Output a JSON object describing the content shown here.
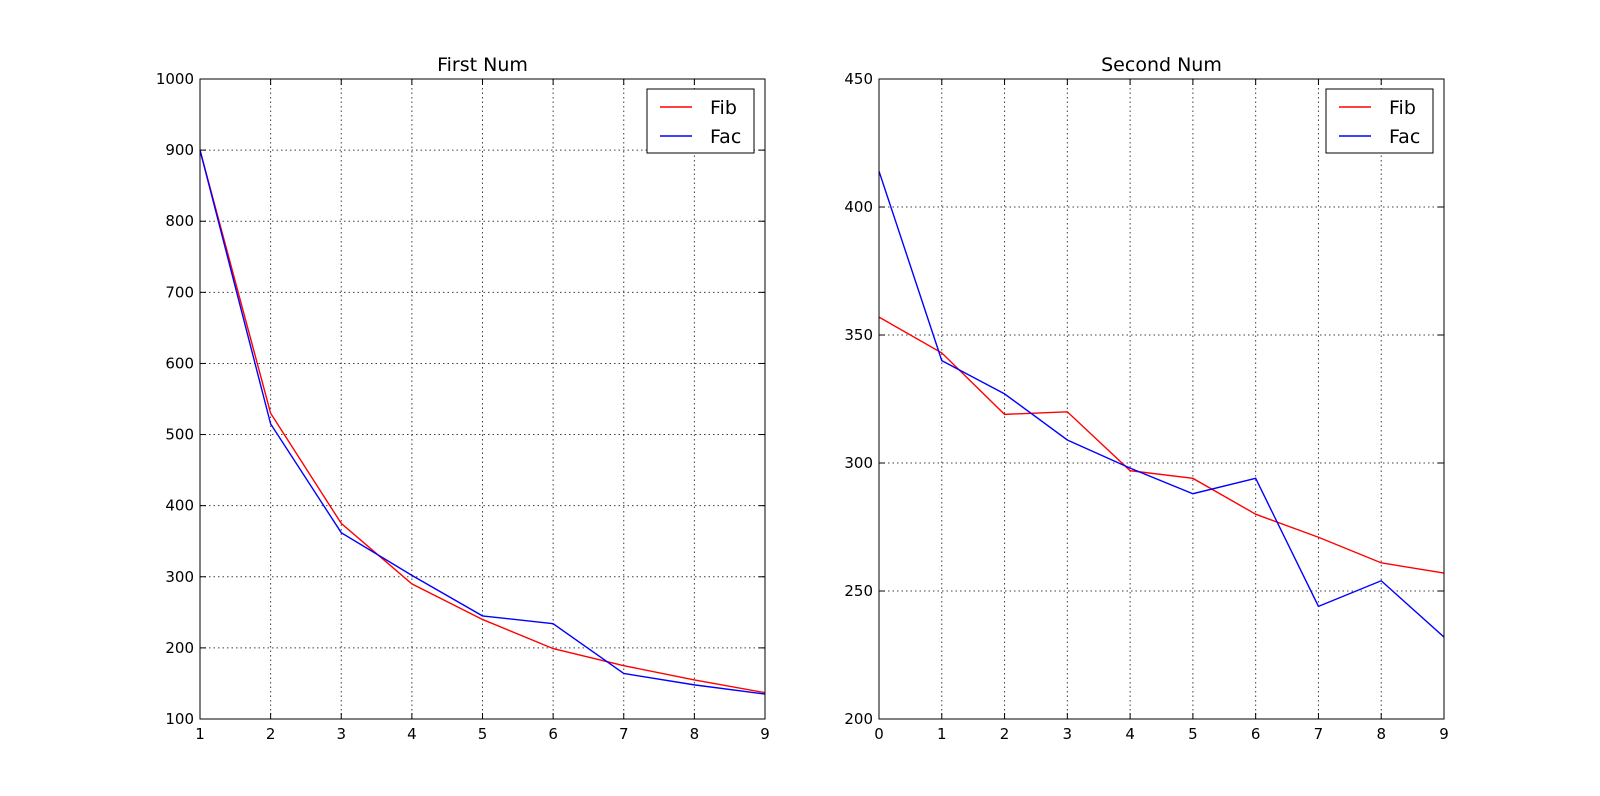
{
  "chart_data": [
    {
      "type": "line",
      "title": "First Num",
      "xlabel": "",
      "ylabel": "",
      "xlim": [
        1,
        9
      ],
      "ylim": [
        100,
        1000
      ],
      "xticks": [
        1,
        2,
        3,
        4,
        5,
        6,
        7,
        8,
        9
      ],
      "yticks": [
        100,
        200,
        300,
        400,
        500,
        600,
        700,
        800,
        900,
        1000
      ],
      "grid": true,
      "legend_position": "top-right",
      "x": [
        1,
        2,
        3,
        4,
        5,
        6,
        7,
        8,
        9
      ],
      "series": [
        {
          "name": "Fib",
          "color": "#ff0000",
          "values": [
            900,
            530,
            375,
            290,
            240,
            199,
            175,
            155,
            137
          ]
        },
        {
          "name": "Fac",
          "color": "#0000ff",
          "values": [
            900,
            515,
            362,
            302,
            245,
            234,
            164,
            148,
            135
          ]
        }
      ]
    },
    {
      "type": "line",
      "title": "Second Num",
      "xlabel": "",
      "ylabel": "",
      "xlim": [
        0,
        9
      ],
      "ylim": [
        200,
        450
      ],
      "xticks": [
        0,
        1,
        2,
        3,
        4,
        5,
        6,
        7,
        8,
        9
      ],
      "yticks": [
        200,
        250,
        300,
        350,
        400,
        450
      ],
      "grid": true,
      "legend_position": "top-right",
      "x": [
        0,
        1,
        2,
        3,
        4,
        5,
        6,
        7,
        8,
        9
      ],
      "series": [
        {
          "name": "Fib",
          "color": "#ff0000",
          "values": [
            357,
            343,
            319,
            320,
            297,
            294,
            280,
            271,
            261,
            257
          ]
        },
        {
          "name": "Fac",
          "color": "#0000ff",
          "values": [
            414,
            340,
            327,
            309,
            298,
            288,
            294,
            244,
            254,
            232
          ]
        }
      ]
    }
  ]
}
